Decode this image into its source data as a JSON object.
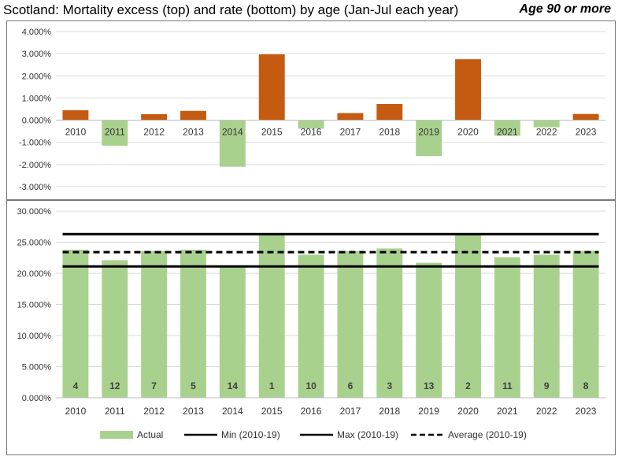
{
  "header": {
    "title": "Scotland: Mortality excess (top) and rate (bottom) by age (Jan-Jul each year)",
    "subtitle": "Age 90 or more"
  },
  "colors": {
    "positive": "#c55a11",
    "negative": "#a9d18e",
    "rate_bar": "#a9d18e",
    "line": "#000000",
    "grid": "#d9d9d9"
  },
  "chart_data": [
    {
      "type": "bar",
      "title": "Mortality excess",
      "categories": [
        "2010",
        "2011",
        "2012",
        "2013",
        "2014",
        "2015",
        "2016",
        "2017",
        "2018",
        "2019",
        "2020",
        "2021",
        "2022",
        "2023"
      ],
      "values": [
        0.45,
        -1.15,
        0.27,
        0.42,
        -2.1,
        2.97,
        -0.38,
        0.32,
        0.73,
        -1.62,
        2.75,
        -0.7,
        -0.32,
        0.28
      ],
      "unit": "%",
      "ylim": [
        -3,
        4
      ],
      "yticks": [
        "4.000%",
        "3.000%",
        "2.000%",
        "1.000%",
        "0.000%",
        "-1.000%",
        "-2.000%",
        "-3.000%"
      ],
      "grid": true
    },
    {
      "type": "bar",
      "title": "Mortality rate",
      "categories": [
        "2010",
        "2011",
        "2012",
        "2013",
        "2014",
        "2015",
        "2016",
        "2017",
        "2018",
        "2019",
        "2020",
        "2021",
        "2022",
        "2023"
      ],
      "series": [
        {
          "name": "Actual",
          "values": [
            23.8,
            22.1,
            23.6,
            23.8,
            21.1,
            26.3,
            23.0,
            23.6,
            24.0,
            21.7,
            26.2,
            22.6,
            23.0,
            23.6
          ],
          "ranks": [
            4,
            12,
            7,
            5,
            14,
            1,
            10,
            6,
            3,
            13,
            2,
            11,
            9,
            8
          ]
        },
        {
          "name": "Min (2010-19)",
          "value": 21.1,
          "style": "solid"
        },
        {
          "name": "Max (2010-19)",
          "value": 26.3,
          "style": "solid"
        },
        {
          "name": "Average (2010-19)",
          "value": 23.4,
          "style": "dashed"
        }
      ],
      "unit": "%",
      "ylim": [
        0,
        30
      ],
      "yticks": [
        "30.000%",
        "25.000%",
        "20.000%",
        "15.000%",
        "10.000%",
        "5.000%",
        "0.000%"
      ],
      "legend_position": "bottom",
      "grid": true
    }
  ]
}
